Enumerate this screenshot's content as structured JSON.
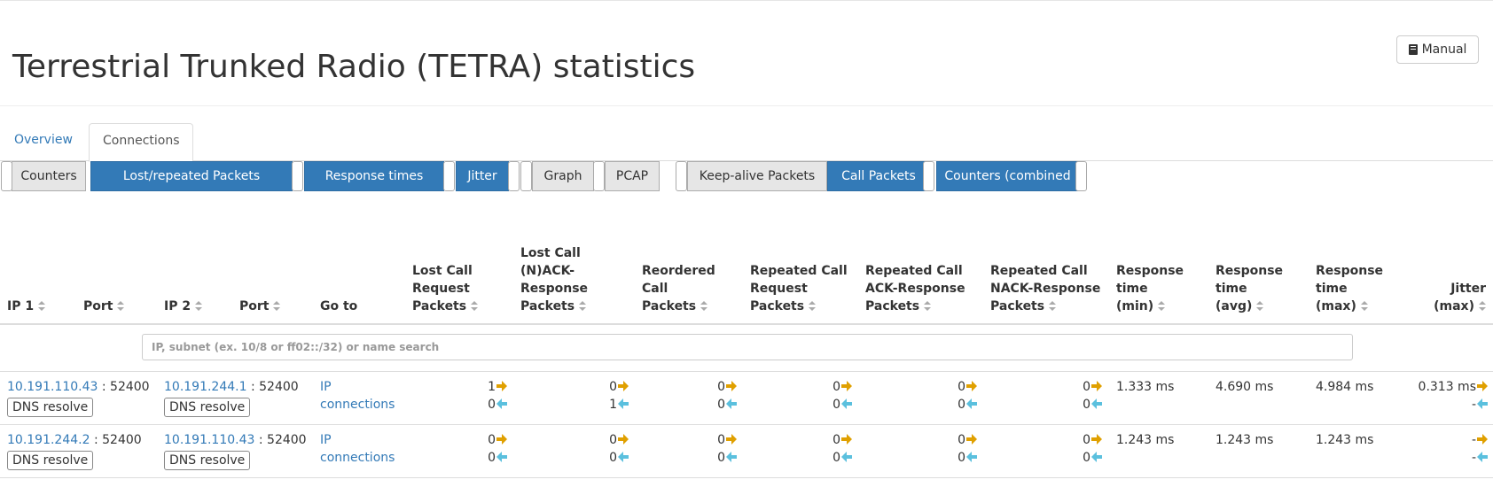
{
  "page": {
    "title": "Terrestrial Trunked Radio (TETRA) statistics",
    "manual_label": "Manual"
  },
  "tabs": [
    {
      "label": "Overview"
    },
    {
      "label": "Connections"
    }
  ],
  "toggles": [
    {
      "label": "Counters",
      "active": false
    },
    {
      "label": "Lost/repeated Packets",
      "active": true
    },
    {
      "label": "Response times",
      "active": true
    },
    {
      "label": "Jitter",
      "active": true
    },
    {
      "label": "Graph",
      "active": false
    },
    {
      "label": "PCAP",
      "active": false
    },
    {
      "label": "Keep-alive Packets",
      "active": false
    },
    {
      "label": "Call Packets",
      "active": true
    },
    {
      "label": "Counters (combined",
      "active": true
    }
  ],
  "columns": {
    "ip1": "IP 1",
    "port1": "Port",
    "ip2": "IP 2",
    "port2": "Port",
    "goto": "Go to",
    "lost_req_1": "Lost Call",
    "lost_req_2": "Request",
    "lost_req_3": "Packets",
    "lost_ack_1": "Lost Call",
    "lost_ack_2": "(N)ACK-",
    "lost_ack_3": "Response",
    "lost_ack_4": "Packets",
    "reord_1": "Reordered",
    "reord_2": "Call",
    "reord_3": "Packets",
    "rep_req_1": "Repeated Call",
    "rep_req_2": "Request",
    "rep_req_3": "Packets",
    "rep_ack_1": "Repeated Call",
    "rep_ack_2": "ACK-Response",
    "rep_ack_3": "Packets",
    "rep_nack_1": "Repeated Call",
    "rep_nack_2": "NACK-Response",
    "rep_nack_3": "Packets",
    "rt_min_1": "Response",
    "rt_min_2": "time",
    "rt_min_3": "(min)",
    "rt_avg_1": "Response",
    "rt_avg_2": "time",
    "rt_avg_3": "(avg)",
    "rt_max_1": "Response",
    "rt_max_2": "time",
    "rt_max_3": "(max)",
    "jit_1": "Jitter",
    "jit_2": "(max)"
  },
  "search_placeholder": "IP, subnet (ex. 10/8 or ff02::/32) or name search",
  "dns_label": "DNS resolve",
  "rows": [
    {
      "ip1": "10.191.110.43",
      "port1": ": 52400",
      "ip2": "10.191.244.1",
      "port2": ": 52400",
      "goto_1": "IP",
      "goto_2": "connections",
      "lost_req": [
        "1",
        "0"
      ],
      "lost_ack": [
        "0",
        "1"
      ],
      "reord": [
        "0",
        "0"
      ],
      "rep_req": [
        "0",
        "0"
      ],
      "rep_ack": [
        "0",
        "0"
      ],
      "rep_nack": [
        "0",
        "0"
      ],
      "rt_min": "1.333 ms",
      "rt_avg": "4.690 ms",
      "rt_max": "4.984 ms",
      "jitter": [
        "0.313 ms",
        "-"
      ]
    },
    {
      "ip1": "10.191.244.2",
      "port1": ": 52400",
      "ip2": "10.191.110.43",
      "port2": ": 52400",
      "goto_1": "IP",
      "goto_2": "connections",
      "lost_req": [
        "0",
        "0"
      ],
      "lost_ack": [
        "0",
        "0"
      ],
      "reord": [
        "0",
        "0"
      ],
      "rep_req": [
        "0",
        "0"
      ],
      "rep_ack": [
        "0",
        "0"
      ],
      "rep_nack": [
        "0",
        "0"
      ],
      "rt_min": "1.243 ms",
      "rt_avg": "1.243 ms",
      "rt_max": "1.243 ms",
      "jitter": [
        "-",
        "-"
      ]
    }
  ],
  "colors": {
    "link": "#337ab7",
    "active_button": "#337ab7",
    "arrow_out": "#e0a000",
    "arrow_in": "#5bc0de"
  }
}
